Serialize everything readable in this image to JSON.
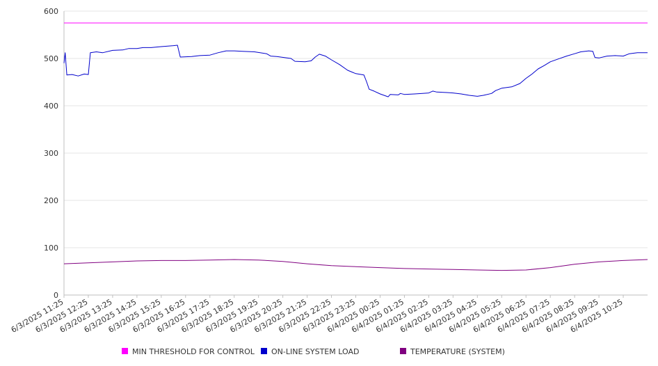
{
  "chart_data": {
    "type": "line",
    "title": "",
    "xlabel": "",
    "ylabel": "",
    "ylim": [
      0,
      600
    ],
    "yticks": [
      0,
      100,
      200,
      300,
      400,
      500,
      600
    ],
    "grid": true,
    "legend_position": "bottom",
    "x_range": [
      "6/3/2025 11:25",
      "6/4/2025 11:25"
    ],
    "xtick_labels": [
      "6/3/2025 11:25",
      "6/3/2025 12:25",
      "6/3/2025 13:25",
      "6/3/2025 14:25",
      "6/3/2025 15:25",
      "6/3/2025 16:25",
      "6/3/2025 17:25",
      "6/3/2025 18:25",
      "6/3/2025 19:25",
      "6/3/2025 20:25",
      "6/3/2025 21:25",
      "6/3/2025 22:25",
      "6/3/2025 23:25",
      "6/4/2025 00:25",
      "6/4/2025 01:25",
      "6/4/2025 02:25",
      "6/4/2025 03:25",
      "6/4/2025 04:25",
      "6/4/2025 05:25",
      "6/4/2025 06:25",
      "6/4/2025 07:25",
      "6/4/2025 08:25",
      "6/4/2025 09:25",
      "6/4/2025 10:25"
    ],
    "series": [
      {
        "name": "MIN THRESHOLD FOR CONTROL",
        "color": "#ff00ff",
        "points": [
          [
            "6/3/2025 11:25",
            575
          ],
          [
            "6/4/2025 11:25",
            575
          ]
        ]
      },
      {
        "name": "ON-LINE SYSTEM LOAD",
        "color": "#0000cc",
        "points": [
          [
            "6/3/2025 11:25",
            490
          ],
          [
            "6/3/2025 11:28",
            512
          ],
          [
            "6/3/2025 11:32",
            465
          ],
          [
            "6/3/2025 11:45",
            466
          ],
          [
            "6/3/2025 12:00",
            463
          ],
          [
            "6/3/2025 12:15",
            467
          ],
          [
            "6/3/2025 12:25",
            466
          ],
          [
            "6/3/2025 12:30",
            512
          ],
          [
            "6/3/2025 12:45",
            514
          ],
          [
            "6/3/2025 13:00",
            512
          ],
          [
            "6/3/2025 13:25",
            517
          ],
          [
            "6/3/2025 13:50",
            518
          ],
          [
            "6/3/2025 14:05",
            521
          ],
          [
            "6/3/2025 14:25",
            521
          ],
          [
            "6/3/2025 14:40",
            523
          ],
          [
            "6/3/2025 15:00",
            523
          ],
          [
            "6/3/2025 15:25",
            525
          ],
          [
            "6/3/2025 15:55",
            527
          ],
          [
            "6/3/2025 16:05",
            528
          ],
          [
            "6/3/2025 16:12",
            503
          ],
          [
            "6/3/2025 16:40",
            504
          ],
          [
            "6/3/2025 17:00",
            506
          ],
          [
            "6/3/2025 17:25",
            507
          ],
          [
            "6/3/2025 17:45",
            512
          ],
          [
            "6/3/2025 18:05",
            516
          ],
          [
            "6/3/2025 18:25",
            516
          ],
          [
            "6/3/2025 18:45",
            515
          ],
          [
            "6/3/2025 19:15",
            514
          ],
          [
            "6/3/2025 19:45",
            510
          ],
          [
            "6/3/2025 19:55",
            505
          ],
          [
            "6/3/2025 20:10",
            504
          ],
          [
            "6/3/2025 20:45",
            500
          ],
          [
            "6/3/2025 20:55",
            494
          ],
          [
            "6/3/2025 21:20",
            493
          ],
          [
            "6/3/2025 21:35",
            495
          ],
          [
            "6/3/2025 21:45",
            503
          ],
          [
            "6/3/2025 21:55",
            509
          ],
          [
            "6/3/2025 22:10",
            505
          ],
          [
            "6/3/2025 22:25",
            497
          ],
          [
            "6/3/2025 22:45",
            487
          ],
          [
            "6/3/2025 23:05",
            475
          ],
          [
            "6/3/2025 23:25",
            468
          ],
          [
            "6/3/2025 23:45",
            465
          ],
          [
            "6/3/2025 23:52",
            450
          ],
          [
            "6/3/2025 23:58",
            435
          ],
          [
            "6/4/2025 00:10",
            431
          ],
          [
            "6/4/2025 00:25",
            425
          ],
          [
            "6/4/2025 00:45",
            419
          ],
          [
            "6/4/2025 00:50",
            424
          ],
          [
            "6/4/2025 01:10",
            423
          ],
          [
            "6/4/2025 01:15",
            426
          ],
          [
            "6/4/2025 01:25",
            424
          ],
          [
            "6/4/2025 01:50",
            425
          ],
          [
            "6/4/2025 02:10",
            426
          ],
          [
            "6/4/2025 02:25",
            427
          ],
          [
            "6/4/2025 02:35",
            431
          ],
          [
            "6/4/2025 02:45",
            429
          ],
          [
            "6/4/2025 03:10",
            428
          ],
          [
            "6/4/2025 03:25",
            427
          ],
          [
            "6/4/2025 03:45",
            425
          ],
          [
            "6/4/2025 04:05",
            422
          ],
          [
            "6/4/2025 04:25",
            420
          ],
          [
            "6/4/2025 04:40",
            422
          ],
          [
            "6/4/2025 05:00",
            426
          ],
          [
            "6/4/2025 05:10",
            432
          ],
          [
            "6/4/2025 05:25",
            437
          ],
          [
            "6/4/2025 05:50",
            440
          ],
          [
            "6/4/2025 06:10",
            447
          ],
          [
            "6/4/2025 06:25",
            458
          ],
          [
            "6/4/2025 06:40",
            467
          ],
          [
            "6/4/2025 06:55",
            478
          ],
          [
            "6/4/2025 07:10",
            485
          ],
          [
            "6/4/2025 07:25",
            493
          ],
          [
            "6/4/2025 07:45",
            499
          ],
          [
            "6/4/2025 08:05",
            505
          ],
          [
            "6/4/2025 08:25",
            510
          ],
          [
            "6/4/2025 08:40",
            514
          ],
          [
            "6/4/2025 09:00",
            516
          ],
          [
            "6/4/2025 09:10",
            515
          ],
          [
            "6/4/2025 09:15",
            502
          ],
          [
            "6/4/2025 09:25",
            501
          ],
          [
            "6/4/2025 09:45",
            505
          ],
          [
            "6/4/2025 10:05",
            506
          ],
          [
            "6/4/2025 10:25",
            505
          ],
          [
            "6/4/2025 10:40",
            510
          ],
          [
            "6/4/2025 11:00",
            512
          ],
          [
            "6/4/2025 11:25",
            512
          ]
        ]
      },
      {
        "name": "TEMPERATURE (SYSTEM)",
        "color": "#800080",
        "points": [
          [
            "6/3/2025 11:25",
            66
          ],
          [
            "6/3/2025 12:25",
            68
          ],
          [
            "6/3/2025 13:25",
            70
          ],
          [
            "6/3/2025 14:25",
            72
          ],
          [
            "6/3/2025 15:25",
            73
          ],
          [
            "6/3/2025 16:25",
            73
          ],
          [
            "6/3/2025 17:25",
            74
          ],
          [
            "6/3/2025 18:25",
            75
          ],
          [
            "6/3/2025 19:25",
            74
          ],
          [
            "6/3/2025 20:25",
            71
          ],
          [
            "6/3/2025 21:25",
            66
          ],
          [
            "6/3/2025 22:25",
            62
          ],
          [
            "6/3/2025 23:25",
            60
          ],
          [
            "6/4/2025 00:25",
            58
          ],
          [
            "6/4/2025 01:25",
            56
          ],
          [
            "6/4/2025 02:25",
            55
          ],
          [
            "6/4/2025 03:25",
            54
          ],
          [
            "6/4/2025 04:25",
            53
          ],
          [
            "6/4/2025 05:25",
            52
          ],
          [
            "6/4/2025 06:25",
            53
          ],
          [
            "6/4/2025 07:25",
            58
          ],
          [
            "6/4/2025 08:25",
            65
          ],
          [
            "6/4/2025 09:25",
            70
          ],
          [
            "6/4/2025 10:25",
            73
          ],
          [
            "6/4/2025 11:25",
            75
          ]
        ]
      }
    ]
  }
}
